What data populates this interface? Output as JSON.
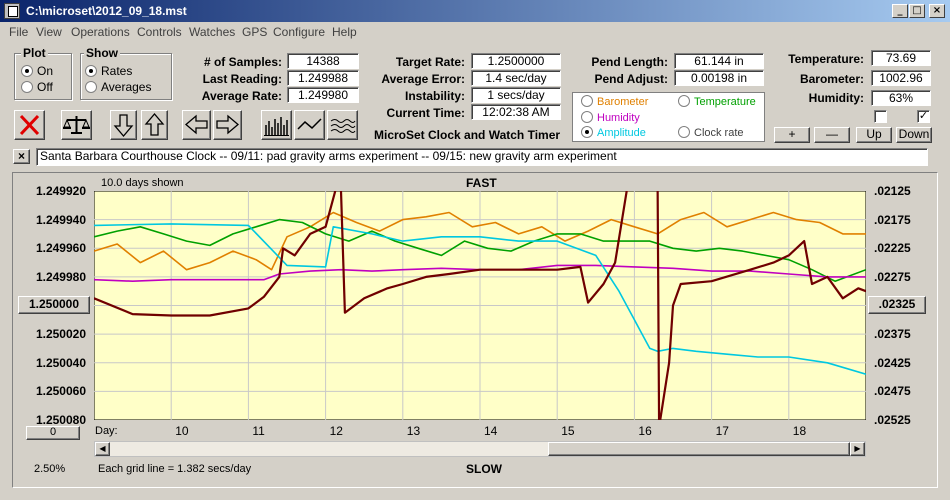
{
  "window": {
    "title": "C:\\microset\\2012_09_18.mst"
  },
  "menu": [
    "File",
    "View",
    "Operations",
    "Controls",
    "Watches",
    "GPS",
    "Configure",
    "Help"
  ],
  "plot": {
    "label": "Plot",
    "on": "On",
    "off": "Off"
  },
  "show": {
    "label": "Show",
    "rates": "Rates",
    "averages": "Averages"
  },
  "stats": {
    "samples_label": "# of Samples:",
    "samples": "14388",
    "last_reading_label": "Last Reading:",
    "last_reading": "1.249988",
    "average_rate_label": "Average Rate:",
    "average_rate": "1.249980",
    "target_rate_label": "Target Rate:",
    "target_rate": "1.2500000",
    "average_error_label": "Average Error:",
    "average_error": "1.4 sec/day",
    "instability_label": "Instability:",
    "instability": "1 secs/day",
    "current_time_label": "Current Time:",
    "current_time": "12:02:38 AM",
    "pend_length_label": "Pend Length:",
    "pend_length": "61.144 in",
    "pend_adjust_label": "Pend Adjust:",
    "pend_adjust": "0.00198 in",
    "temperature_label": "Temperature:",
    "temperature": "73.69",
    "barometer_label": "Barometer:",
    "barometer": "1002.96",
    "humidity_label": "Humidity:",
    "humidity": "63%"
  },
  "app_name": "MicroSet Clock and Watch Timer",
  "series_options": {
    "barometer": "Barometer",
    "temperature": "Temperature",
    "humidity": "Humidity",
    "amplitude": "Amplitude",
    "clock_rate": "Clock rate",
    "colors": {
      "barometer": "#e08000",
      "temperature": "#00a000",
      "humidity": "#c000c0",
      "amplitude": "#00c8e0",
      "clock_rate": "#700000"
    }
  },
  "controls": {
    "plus": "+",
    "minus": "—",
    "up": "Up",
    "down": "Down"
  },
  "description": "Santa Barbara Courthouse Clock  --  09/11: pad gravity arms experiment  --  09/15: new gravity arm experiment",
  "left_buttons": {
    "center": "1.250000",
    "zero": "0",
    "zoom": "2.50%"
  },
  "right_button": ".02325",
  "chart_data": {
    "type": "line",
    "days_shown": "10.0 days shown",
    "top_label": "FAST",
    "bottom_label": "SLOW",
    "grid_note": "Each grid line = 1.382 secs/day",
    "x_label": "Day:",
    "x_ticks": [
      "10",
      "11",
      "12",
      "13",
      "14",
      "15",
      "16",
      "17",
      "18"
    ],
    "xlim": [
      9,
      19
    ],
    "left_ticks": [
      "1.249920",
      "1.249940",
      "1.249960",
      "1.249980",
      "1.250000",
      "1.250020",
      "1.250040",
      "1.250060",
      "1.250080"
    ],
    "left_ylim": [
      1.24992,
      1.25008
    ],
    "right_ticks": [
      ".02125",
      ".02175",
      ".02225",
      ".02275",
      ".02325",
      ".02375",
      ".02425",
      ".02475",
      ".02525"
    ],
    "right_ylim": [
      0.02125,
      0.02525
    ],
    "series": [
      {
        "color": "#e08000",
        "x": [
          9,
          9.3,
          9.6,
          9.9,
          10.2,
          10.5,
          10.8,
          11.1,
          11.3,
          11.5,
          11.8,
          12.1,
          12.4,
          12.7,
          13.0,
          13.3,
          13.6,
          13.9,
          14.2,
          14.5,
          14.8,
          15.1,
          15.4,
          15.7,
          16.0,
          16.3,
          16.6,
          16.9,
          17.2,
          17.5,
          17.8,
          18.1,
          18.4,
          18.7,
          19
        ],
        "y": [
          1.249962,
          1.249957,
          1.24997,
          1.249962,
          1.249975,
          1.24997,
          1.249962,
          1.249968,
          1.249975,
          1.249952,
          1.249945,
          1.249935,
          1.249942,
          1.249948,
          1.24994,
          1.249938,
          1.249935,
          1.249945,
          1.249942,
          1.24995,
          1.249945,
          1.249955,
          1.249948,
          1.24994,
          1.249945,
          1.24995,
          1.24994,
          1.249935,
          1.249945,
          1.24994,
          1.249935,
          1.24994,
          1.249942,
          1.24995,
          1.24995
        ]
      },
      {
        "color": "#00a000",
        "x": [
          9,
          9.3,
          9.6,
          9.9,
          10.2,
          10.5,
          10.8,
          11.1,
          11.4,
          11.7,
          12.0,
          12.3,
          12.6,
          12.9,
          13.2,
          13.5,
          13.8,
          14.1,
          14.4,
          14.7,
          15.0,
          15.3,
          15.6,
          15.9,
          16.2,
          16.5,
          16.8,
          17.1,
          17.4,
          17.7,
          18.0,
          18.3,
          18.6,
          19
        ],
        "y": [
          1.249952,
          1.249948,
          1.249945,
          1.24995,
          1.249955,
          1.249958,
          1.24995,
          1.249945,
          1.24994,
          1.249942,
          1.24995,
          1.249955,
          1.249948,
          1.249955,
          1.24996,
          1.249965,
          1.249955,
          1.24996,
          1.249962,
          1.249955,
          1.24995,
          1.24995,
          1.249955,
          1.249955,
          1.249955,
          1.24996,
          1.249962,
          1.24996,
          1.249962,
          1.249965,
          1.249968,
          1.249975,
          1.249983,
          1.249975
        ]
      },
      {
        "color": "#c000c0",
        "x": [
          9,
          9.5,
          10,
          10.5,
          11,
          11.2,
          11.4,
          11.8,
          12.2,
          12.6,
          13.0,
          13.5,
          14.0,
          14.5,
          15.0,
          15.5,
          16.0,
          16.5,
          17.0,
          17.5,
          18.0,
          18.5,
          19
        ],
        "y": [
          1.249982,
          1.249983,
          1.249982,
          1.249982,
          1.249982,
          1.249982,
          1.249978,
          1.249976,
          1.249975,
          1.249976,
          1.249975,
          1.249974,
          1.249975,
          1.249975,
          1.249972,
          1.249972,
          1.249973,
          1.249974,
          1.249976,
          1.249976,
          1.249978,
          1.24998,
          1.24998
        ]
      },
      {
        "color": "#00c8e0",
        "x": [
          9,
          10,
          11,
          11.5,
          12.0,
          12.1,
          12.6,
          13.0,
          13.5,
          14.0,
          14.5,
          15.0,
          15.5,
          15.8,
          15.9,
          16.0,
          16.1,
          16.2,
          16.3,
          16.5,
          16.8,
          17.2,
          17.6,
          18.0,
          18.5,
          19
        ],
        "y": [
          1.249944,
          1.249943,
          1.249944,
          1.249972,
          1.249973,
          1.249945,
          1.24995,
          1.249955,
          1.249952,
          1.249952,
          1.249955,
          1.249955,
          1.249965,
          1.24999,
          1.25,
          1.25001,
          1.25002,
          1.25003,
          1.250032,
          1.25003,
          1.250032,
          1.250034,
          1.250036,
          1.250036,
          1.25004,
          1.250048
        ]
      },
      {
        "color": "#700000",
        "x": [
          9,
          9.5,
          10,
          10.5,
          11,
          11.2,
          11.4,
          11.45,
          11.6,
          11.8,
          12.0,
          12.15,
          12.2,
          12.25,
          12.5,
          12.8,
          13.0,
          13.3,
          13.6,
          14.0,
          14.5,
          15.0,
          15.3,
          15.4,
          15.6,
          15.75,
          15.9,
          16.0,
          16.1,
          16.2,
          16.3,
          16.32,
          16.45,
          16.5,
          16.6,
          17.0,
          17.5,
          17.8,
          18.0,
          18.2,
          18.3,
          18.5,
          18.7,
          18.9,
          19
        ],
        "y": [
          1.249995,
          1.250006,
          1.250007,
          1.250007,
          1.250002,
          1.249994,
          1.24998,
          1.24996,
          1.249965,
          1.24995,
          1.249945,
          1.249915,
          1.24992,
          1.250005,
          1.249995,
          1.249988,
          1.249985,
          1.24998,
          1.249978,
          1.249975,
          1.249975,
          1.249975,
          1.249973,
          1.249998,
          1.249985,
          1.24997,
          1.24992,
          1.249918,
          1.249915,
          1.249915,
          1.249915,
          1.250085,
          1.25004,
          1.25,
          1.249985,
          1.249983,
          1.249975,
          1.24997,
          1.249965,
          1.249955,
          1.249985,
          1.24998,
          1.249995,
          1.249988,
          1.24999
        ]
      }
    ]
  }
}
